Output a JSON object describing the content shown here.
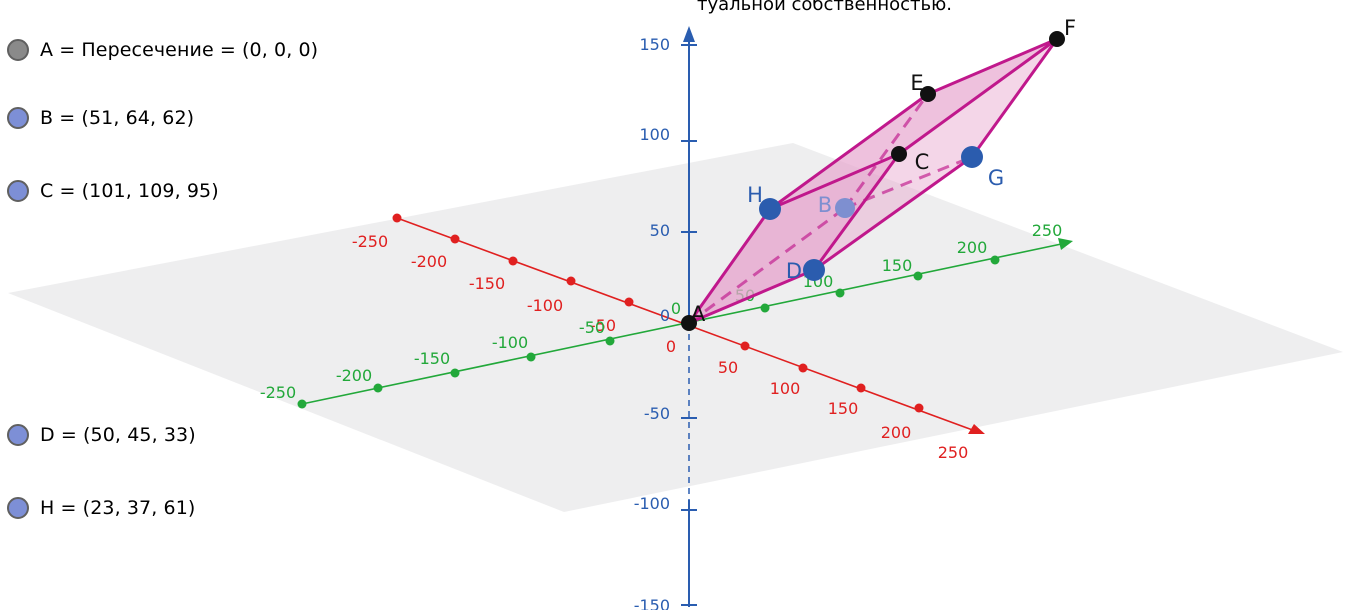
{
  "caption": "туальной собственностью.",
  "colors": {
    "x_axis": "#e02020",
    "y_axis": "#22a83a",
    "z_axis": "#2a5db0",
    "polyhedron_edge": "#c0188c",
    "polyhedron_fill": "#e7a3cc",
    "plane": "#e8e8ea",
    "point_black": "#111111",
    "point_blue": "#2b5cae",
    "point_light_blue": "#7e8fd0",
    "legend_grey": "#8a8a8a",
    "legend_blue": "#7d8fd6"
  },
  "legend": [
    {
      "text": "A = Пересечение = (0, 0, 0)",
      "color": "#8a8a8a"
    },
    {
      "text": "B = (51, 64, 62)",
      "color": "#7d8fd6"
    },
    {
      "text": "C = (101, 109, 95)",
      "color": "#7d8fd6"
    },
    {
      "text": "D = (50, 45, 33)",
      "color": "#7d8fd6"
    },
    {
      "text": "H = (23, 37, 61)",
      "color": "#7d8fd6"
    }
  ],
  "axes": {
    "x": {
      "ticks": [
        "-250",
        "-200",
        "-150",
        "-100",
        "-50",
        "0",
        "50",
        "100",
        "150",
        "200",
        "250"
      ]
    },
    "y": {
      "ticks": [
        "-250",
        "-200",
        "-150",
        "-100",
        "-50",
        "0",
        "50",
        "100",
        "150",
        "200",
        "250"
      ]
    },
    "z": {
      "ticks": [
        "-150",
        "-100",
        "-50",
        "0",
        "50",
        "100",
        "150"
      ]
    }
  },
  "points": [
    {
      "label": "A",
      "color": "#111111"
    },
    {
      "label": "B",
      "color": "#7e8fd0"
    },
    {
      "label": "C",
      "color": "#111111"
    },
    {
      "label": "D",
      "color": "#2b5cae"
    },
    {
      "label": "E",
      "color": "#111111"
    },
    {
      "label": "F",
      "color": "#111111"
    },
    {
      "label": "G",
      "color": "#2b5cae"
    },
    {
      "label": "H",
      "color": "#2b5cae"
    }
  ]
}
